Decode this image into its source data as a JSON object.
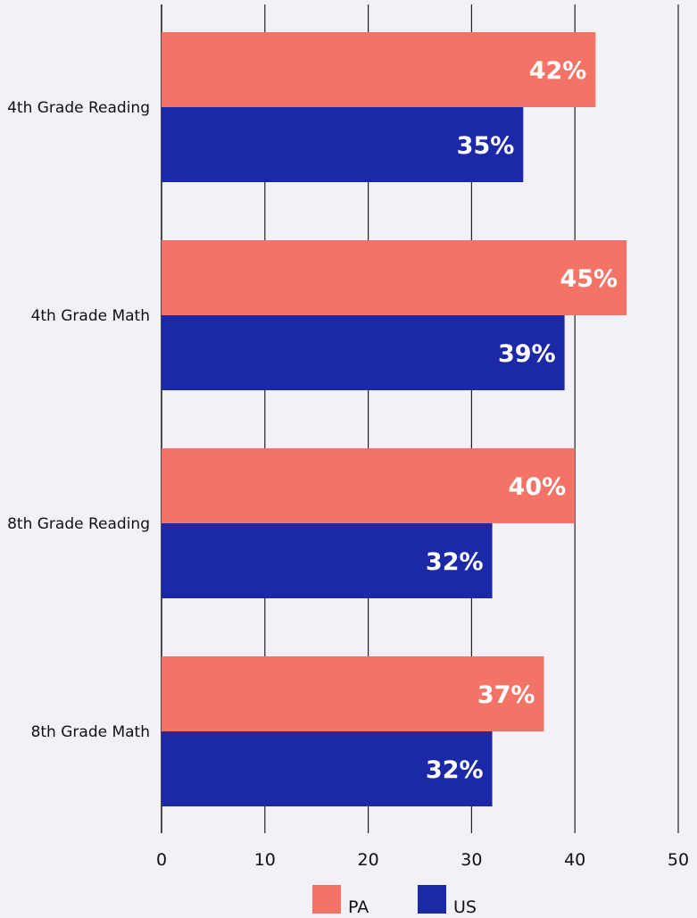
{
  "chart_data": {
    "type": "bar",
    "orientation": "horizontal",
    "categories": [
      "4th Grade Reading",
      "4th Grade Math",
      "8th Grade Reading",
      "8th Grade Math"
    ],
    "series": [
      {
        "name": "PA",
        "color": "#f37467",
        "values": [
          42,
          45,
          40,
          37
        ],
        "labels": [
          "42%",
          "45%",
          "40%",
          "37%"
        ]
      },
      {
        "name": "US",
        "color": "#1b28a8",
        "values": [
          35,
          39,
          32,
          32
        ],
        "labels": [
          "35%",
          "39%",
          "32%",
          "32%"
        ]
      }
    ],
    "xticks": [
      "0",
      "10",
      "20",
      "30",
      "40",
      "50"
    ],
    "xlim": [
      0,
      50
    ],
    "grid": true,
    "legend_position": "bottom-center"
  }
}
